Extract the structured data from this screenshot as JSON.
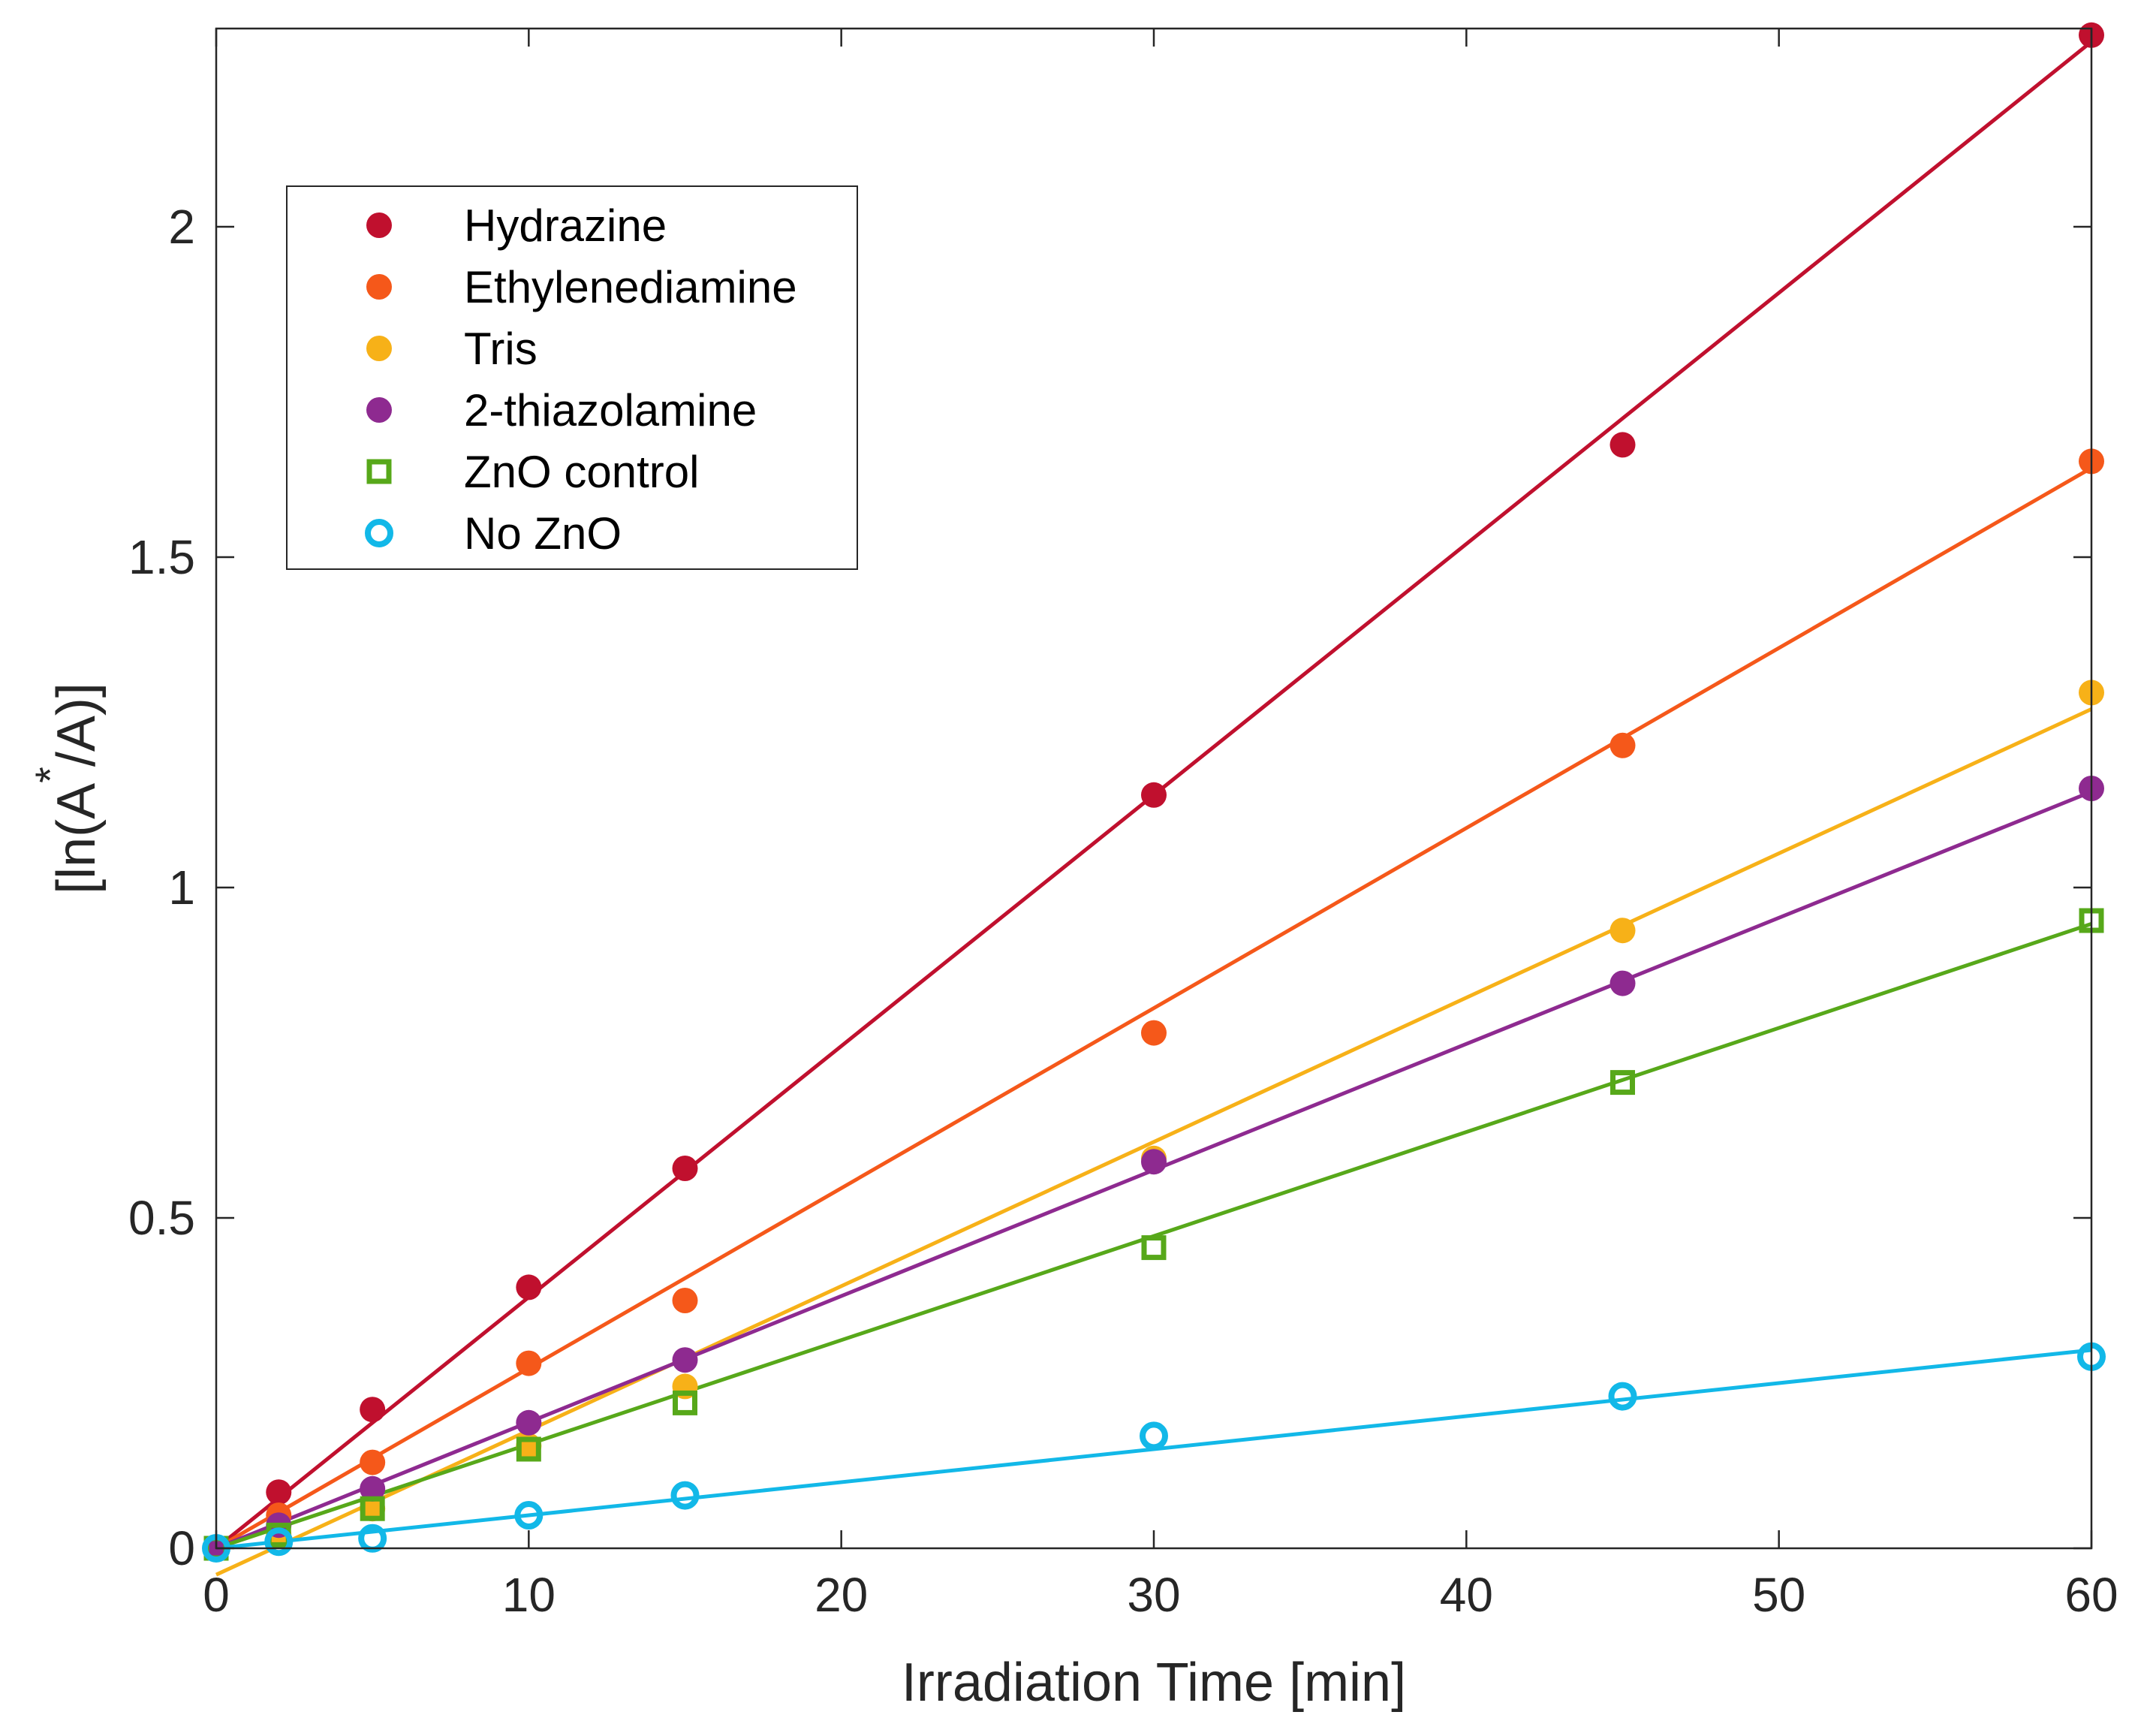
{
  "chart_data": {
    "type": "scatter",
    "title": "",
    "xlabel": "Irradiation Time [min]",
    "ylabel_main": "[ln(A",
    "ylabel_sup": "*",
    "ylabel_tail": "/A)]",
    "xlim": [
      0,
      60
    ],
    "ylim": [
      0,
      2.3
    ],
    "xticks": [
      0,
      10,
      20,
      30,
      40,
      50,
      60
    ],
    "xtick_labels": [
      "0",
      "10",
      "20",
      "30",
      "40",
      "50",
      "60"
    ],
    "yticks": [
      0,
      0.5,
      1,
      1.5,
      2
    ],
    "ytick_labels": [
      "0",
      "0.5",
      "1",
      "1.5",
      "2"
    ],
    "grid": false,
    "legend_position": "top-left",
    "x": [
      0,
      2,
      5,
      10,
      15,
      30,
      45,
      60
    ],
    "series": [
      {
        "name": "Hydrazine",
        "color": "#c0102e",
        "marker": "filled-circle",
        "values": [
          0,
          0.085,
          0.21,
          0.395,
          0.575,
          1.14,
          1.67,
          2.29
        ],
        "fit": [
          0,
          2.28
        ]
      },
      {
        "name": "Ethylenediamine",
        "color": "#f5581a",
        "marker": "filled-circle",
        "values": [
          0,
          0.05,
          0.13,
          0.28,
          0.375,
          0.78,
          1.215,
          1.645
        ],
        "fit": [
          0,
          1.635
        ]
      },
      {
        "name": "Tris",
        "color": "#f7b118",
        "marker": "filled-circle",
        "values": [
          0,
          0.02,
          0.06,
          0.155,
          0.245,
          0.59,
          0.935,
          1.295
        ],
        "fit": [
          -0.04,
          1.27
        ]
      },
      {
        "name": "2-thiazolamine",
        "color": "#8e2a90",
        "marker": "filled-circle",
        "values": [
          0,
          0.035,
          0.09,
          0.19,
          0.285,
          0.585,
          0.855,
          1.15
        ],
        "fit": [
          0,
          1.145
        ]
      },
      {
        "name": "ZnO control",
        "color": "#57a81a",
        "marker": "open-square",
        "values": [
          0,
          0.02,
          0.06,
          0.15,
          0.22,
          0.455,
          0.705,
          0.95
        ],
        "fit": [
          0,
          0.945
        ]
      },
      {
        "name": "No ZnO",
        "color": "#12b8e8",
        "marker": "open-circle",
        "values": [
          0,
          0.01,
          0.015,
          0.05,
          0.08,
          0.17,
          0.23,
          0.29
        ],
        "fit": [
          0,
          0.3
        ]
      }
    ]
  }
}
